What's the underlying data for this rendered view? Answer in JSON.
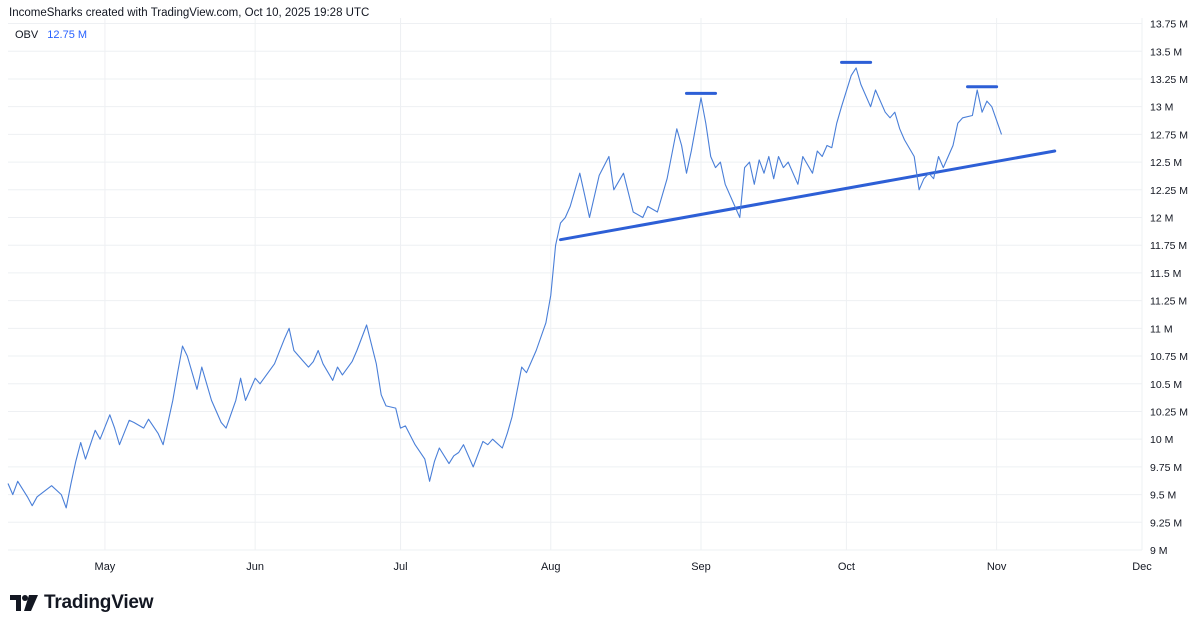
{
  "header": {
    "attribution": "IncomeSharks created with TradingView.com, Oct 10, 2025 19:28 UTC"
  },
  "legend": {
    "indicator": "OBV",
    "value": "12.75 M"
  },
  "branding": {
    "logo_text": "TradingView",
    "logo_icon": "tradingview-logo-icon"
  },
  "colors": {
    "series": "#4a7fd8",
    "drawing": "#2d5fd6",
    "grid": "#eef0f3",
    "axis_text": "#131722",
    "background": "#ffffff"
  },
  "chart_data": {
    "type": "line",
    "title": "",
    "xlabel": "",
    "ylabel": "",
    "grid": true,
    "x_tick_labels": [
      "May",
      "Jun",
      "Jul",
      "Aug",
      "Sep",
      "Oct",
      "Nov",
      "Dec"
    ],
    "x_ticks": [
      "2025-05-01",
      "2025-06-01",
      "2025-07-01",
      "2025-08-01",
      "2025-09-01",
      "2025-10-01",
      "2025-11-01",
      "2025-12-01"
    ],
    "y_ticks": [
      9,
      9.25,
      9.5,
      9.75,
      10,
      10.25,
      10.5,
      10.75,
      11,
      11.25,
      11.5,
      11.75,
      12,
      12.25,
      12.5,
      12.75,
      13,
      13.25,
      13.5,
      13.75
    ],
    "y_tick_labels": [
      "9 M",
      "9.25 M",
      "9.5 M",
      "9.75 M",
      "10 M",
      "10.25 M",
      "10.5 M",
      "10.75 M",
      "11 M",
      "11.25 M",
      "11.5 M",
      "11.75 M",
      "12 M",
      "12.25 M",
      "12.5 M",
      "12.75 M",
      "13 M",
      "13.25 M",
      "13.5 M",
      "13.75 M"
    ],
    "ylim": [
      9,
      13.8
    ],
    "xlim": [
      "2025-04-11",
      "2025-12-01"
    ],
    "series": [
      {
        "values": [
          [
            "2025-04-11",
            9.6
          ],
          [
            "2025-04-12",
            9.5
          ],
          [
            "2025-04-13",
            9.62
          ],
          [
            "2025-04-15",
            9.48
          ],
          [
            "2025-04-16",
            9.4
          ],
          [
            "2025-04-17",
            9.48
          ],
          [
            "2025-04-20",
            9.58
          ],
          [
            "2025-04-22",
            9.5
          ],
          [
            "2025-04-23",
            9.38
          ],
          [
            "2025-04-24",
            9.6
          ],
          [
            "2025-04-25",
            9.8
          ],
          [
            "2025-04-26",
            9.97
          ],
          [
            "2025-04-27",
            9.82
          ],
          [
            "2025-04-29",
            10.08
          ],
          [
            "2025-04-30",
            10.0
          ],
          [
            "2025-05-02",
            10.22
          ],
          [
            "2025-05-03",
            10.1
          ],
          [
            "2025-05-04",
            9.95
          ],
          [
            "2025-05-06",
            10.17
          ],
          [
            "2025-05-07",
            10.15
          ],
          [
            "2025-05-09",
            10.1
          ],
          [
            "2025-05-10",
            10.18
          ],
          [
            "2025-05-12",
            10.05
          ],
          [
            "2025-05-13",
            9.95
          ],
          [
            "2025-05-15",
            10.35
          ],
          [
            "2025-05-16",
            10.6
          ],
          [
            "2025-05-17",
            10.84
          ],
          [
            "2025-05-18",
            10.75
          ],
          [
            "2025-05-20",
            10.45
          ],
          [
            "2025-05-21",
            10.65
          ],
          [
            "2025-05-23",
            10.35
          ],
          [
            "2025-05-25",
            10.15
          ],
          [
            "2025-05-26",
            10.1
          ],
          [
            "2025-05-28",
            10.35
          ],
          [
            "2025-05-29",
            10.55
          ],
          [
            "2025-05-30",
            10.35
          ],
          [
            "2025-06-01",
            10.55
          ],
          [
            "2025-06-02",
            10.5
          ],
          [
            "2025-06-05",
            10.68
          ],
          [
            "2025-06-07",
            10.9
          ],
          [
            "2025-06-08",
            11.0
          ],
          [
            "2025-06-09",
            10.8
          ],
          [
            "2025-06-11",
            10.7
          ],
          [
            "2025-06-12",
            10.65
          ],
          [
            "2025-06-13",
            10.7
          ],
          [
            "2025-06-14",
            10.8
          ],
          [
            "2025-06-15",
            10.68
          ],
          [
            "2025-06-17",
            10.53
          ],
          [
            "2025-06-18",
            10.65
          ],
          [
            "2025-06-19",
            10.58
          ],
          [
            "2025-06-21",
            10.7
          ],
          [
            "2025-06-22",
            10.8
          ],
          [
            "2025-06-24",
            11.03
          ],
          [
            "2025-06-26",
            10.68
          ],
          [
            "2025-06-27",
            10.4
          ],
          [
            "2025-06-28",
            10.3
          ],
          [
            "2025-06-30",
            10.28
          ],
          [
            "2025-07-01",
            10.1
          ],
          [
            "2025-07-02",
            10.12
          ],
          [
            "2025-07-04",
            9.95
          ],
          [
            "2025-07-06",
            9.82
          ],
          [
            "2025-07-07",
            9.62
          ],
          [
            "2025-07-08",
            9.8
          ],
          [
            "2025-07-09",
            9.92
          ],
          [
            "2025-07-11",
            9.78
          ],
          [
            "2025-07-12",
            9.85
          ],
          [
            "2025-07-13",
            9.88
          ],
          [
            "2025-07-14",
            9.95
          ],
          [
            "2025-07-16",
            9.75
          ],
          [
            "2025-07-18",
            9.98
          ],
          [
            "2025-07-19",
            9.95
          ],
          [
            "2025-07-20",
            10.0
          ],
          [
            "2025-07-22",
            9.92
          ],
          [
            "2025-07-23",
            10.05
          ],
          [
            "2025-07-24",
            10.2
          ],
          [
            "2025-07-26",
            10.65
          ],
          [
            "2025-07-27",
            10.6
          ],
          [
            "2025-07-29",
            10.8
          ],
          [
            "2025-07-31",
            11.05
          ],
          [
            "2025-08-01",
            11.3
          ],
          [
            "2025-08-02",
            11.75
          ],
          [
            "2025-08-03",
            11.95
          ],
          [
            "2025-08-04",
            12.0
          ],
          [
            "2025-08-05",
            12.1
          ],
          [
            "2025-08-06",
            12.25
          ],
          [
            "2025-08-07",
            12.4
          ],
          [
            "2025-08-08",
            12.2
          ],
          [
            "2025-08-09",
            12.0
          ],
          [
            "2025-08-11",
            12.38
          ],
          [
            "2025-08-13",
            12.55
          ],
          [
            "2025-08-14",
            12.25
          ],
          [
            "2025-08-16",
            12.4
          ],
          [
            "2025-08-18",
            12.05
          ],
          [
            "2025-08-20",
            12.0
          ],
          [
            "2025-08-21",
            12.1
          ],
          [
            "2025-08-23",
            12.05
          ],
          [
            "2025-08-25",
            12.35
          ],
          [
            "2025-08-27",
            12.8
          ],
          [
            "2025-08-28",
            12.65
          ],
          [
            "2025-08-29",
            12.4
          ],
          [
            "2025-08-30",
            12.6
          ],
          [
            "2025-09-01",
            13.08
          ],
          [
            "2025-09-02",
            12.85
          ],
          [
            "2025-09-03",
            12.55
          ],
          [
            "2025-09-04",
            12.45
          ],
          [
            "2025-09-05",
            12.5
          ],
          [
            "2025-09-06",
            12.3
          ],
          [
            "2025-09-08",
            12.1
          ],
          [
            "2025-09-09",
            12.0
          ],
          [
            "2025-09-10",
            12.45
          ],
          [
            "2025-09-11",
            12.5
          ],
          [
            "2025-09-12",
            12.3
          ],
          [
            "2025-09-13",
            12.52
          ],
          [
            "2025-09-14",
            12.4
          ],
          [
            "2025-09-15",
            12.55
          ],
          [
            "2025-09-16",
            12.35
          ],
          [
            "2025-09-17",
            12.55
          ],
          [
            "2025-09-18",
            12.45
          ],
          [
            "2025-09-19",
            12.5
          ],
          [
            "2025-09-21",
            12.3
          ],
          [
            "2025-09-22",
            12.55
          ],
          [
            "2025-09-24",
            12.4
          ],
          [
            "2025-09-25",
            12.6
          ],
          [
            "2025-09-26",
            12.55
          ],
          [
            "2025-09-27",
            12.65
          ],
          [
            "2025-09-28",
            12.63
          ],
          [
            "2025-09-29",
            12.85
          ],
          [
            "2025-09-30",
            13.0
          ],
          [
            "2025-10-02",
            13.28
          ],
          [
            "2025-10-03",
            13.35
          ],
          [
            "2025-10-04",
            13.2
          ],
          [
            "2025-10-06",
            13.0
          ],
          [
            "2025-10-07",
            13.15
          ],
          [
            "2025-10-09",
            12.95
          ],
          [
            "2025-10-10",
            12.9
          ],
          [
            "2025-10-11",
            12.95
          ],
          [
            "2025-10-12",
            12.8
          ],
          [
            "2025-10-13",
            12.7
          ],
          [
            "2025-10-15",
            12.55
          ],
          [
            "2025-10-16",
            12.25
          ],
          [
            "2025-10-17",
            12.35
          ],
          [
            "2025-10-18",
            12.4
          ],
          [
            "2025-10-19",
            12.35
          ],
          [
            "2025-10-20",
            12.55
          ],
          [
            "2025-10-21",
            12.45
          ],
          [
            "2025-10-23",
            12.65
          ],
          [
            "2025-10-24",
            12.85
          ],
          [
            "2025-10-25",
            12.9
          ],
          [
            "2025-10-27",
            12.92
          ],
          [
            "2025-10-28",
            13.15
          ],
          [
            "2025-10-29",
            12.95
          ],
          [
            "2025-10-30",
            13.05
          ],
          [
            "2025-10-31",
            13.0
          ],
          [
            "2025-11-02",
            12.75
          ]
        ]
      }
    ],
    "drawings": [
      {
        "kind": "trendline",
        "from": [
          "2025-08-03",
          11.8
        ],
        "to": [
          "2025-11-13",
          12.6
        ]
      },
      {
        "kind": "hline",
        "from": [
          "2025-08-29",
          13.12
        ],
        "to": [
          "2025-09-04",
          13.12
        ]
      },
      {
        "kind": "hline",
        "from": [
          "2025-09-30",
          13.4
        ],
        "to": [
          "2025-10-06",
          13.4
        ]
      },
      {
        "kind": "hline",
        "from": [
          "2025-10-26",
          13.18
        ],
        "to": [
          "2025-11-01",
          13.18
        ]
      }
    ]
  }
}
